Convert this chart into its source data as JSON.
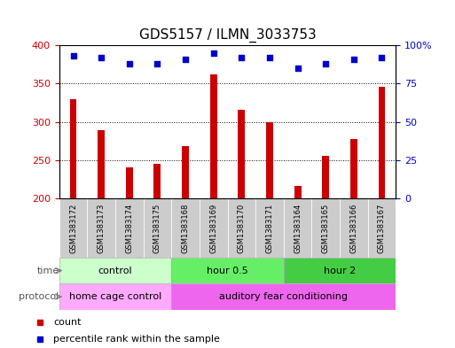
{
  "title": "GDS5157 / ILMN_3033753",
  "samples": [
    "GSM1383172",
    "GSM1383173",
    "GSM1383174",
    "GSM1383175",
    "GSM1383168",
    "GSM1383169",
    "GSM1383170",
    "GSM1383171",
    "GSM1383164",
    "GSM1383165",
    "GSM1383166",
    "GSM1383167"
  ],
  "counts": [
    330,
    289,
    240,
    245,
    268,
    362,
    316,
    299,
    216,
    256,
    278,
    346
  ],
  "percentiles": [
    93,
    92,
    88,
    88,
    91,
    95,
    92,
    92,
    85,
    88,
    91,
    92
  ],
  "ylim_left": [
    200,
    400
  ],
  "ylim_right": [
    0,
    100
  ],
  "yticks_left": [
    200,
    250,
    300,
    350,
    400
  ],
  "yticks_right": [
    0,
    25,
    50,
    75,
    100
  ],
  "bar_color": "#cc0000",
  "dot_color": "#0000cc",
  "time_groups": [
    {
      "label": "control",
      "start": 0,
      "end": 4,
      "color": "#ccffcc"
    },
    {
      "label": "hour 0.5",
      "start": 4,
      "end": 8,
      "color": "#66ee66"
    },
    {
      "label": "hour 2",
      "start": 8,
      "end": 12,
      "color": "#44cc44"
    }
  ],
  "protocol_groups": [
    {
      "label": "home cage control",
      "start": 0,
      "end": 4,
      "color": "#ffaaff"
    },
    {
      "label": "auditory fear conditioning",
      "start": 4,
      "end": 12,
      "color": "#ee66ee"
    }
  ],
  "legend_items": [
    {
      "label": "count",
      "color": "#cc0000",
      "marker": "s"
    },
    {
      "label": "percentile rank within the sample",
      "color": "#0000cc",
      "marker": "s"
    }
  ],
  "row_label_time": "time",
  "row_label_protocol": "protocol",
  "title_fontsize": 11,
  "axis_label_color_left": "#cc0000",
  "axis_label_color_right": "#0000cc",
  "sample_box_color": "#cccccc",
  "fig_width": 5.13,
  "fig_height": 3.93,
  "dpi": 100
}
